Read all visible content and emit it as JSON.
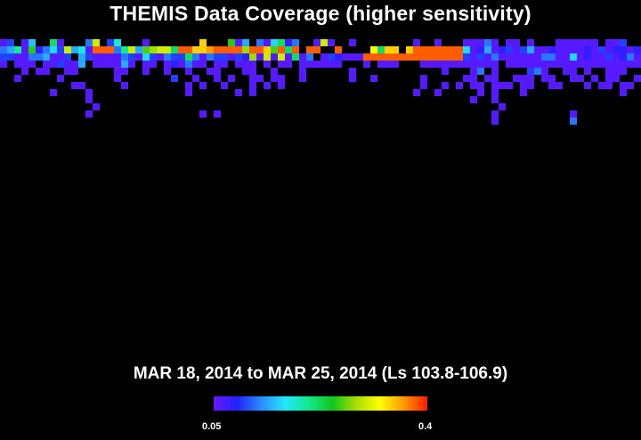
{
  "title": "THEMIS Data Coverage (higher sensitivity)",
  "date_range_label": "MAR 18, 2014 to MAR 25, 2014 (Ls 103.8-106.9)",
  "colorbar": {
    "min_label": "0.05",
    "max_label": "0.4",
    "min": 0.05,
    "max": 0.4,
    "colors": [
      "#6a16ff",
      "#2222ff",
      "#2a8cff",
      "#20e8ff",
      "#12e88c",
      "#10c81e",
      "#aadd00",
      "#ffff00",
      "#ff9a00",
      "#ff1a00"
    ]
  },
  "chart_data": {
    "type": "heatmap",
    "title": "THEMIS Data Coverage (higher sensitivity)",
    "subtitle": "MAR 18, 2014 to MAR 25, 2014 (Ls 103.8-106.9)",
    "value_range": [
      0.05,
      0.4
    ],
    "grid": false,
    "legend": "colorbar-bottom-center",
    "columns": 90,
    "rows": 27,
    "row_0_coverage": [
      0.06,
      0.1,
      0,
      0.06,
      0.15,
      0,
      0,
      0.22,
      0.06,
      0,
      0,
      0,
      0.12,
      0.3,
      0,
      0.1,
      0.18,
      0,
      0,
      0,
      0.06,
      0,
      0,
      0,
      0,
      0,
      0,
      0,
      0.34,
      0,
      0,
      0,
      0.25,
      0.06,
      0.14,
      0,
      0.12,
      0.06,
      0.16,
      0.22,
      0.08,
      0.12,
      0,
      0,
      0.06,
      0.3,
      0.06,
      0,
      0,
      0.06,
      0,
      0,
      0,
      0,
      0,
      0,
      0,
      0,
      0.06,
      0,
      0,
      0.06,
      0,
      0,
      0,
      0.06,
      0.06,
      0.06,
      0.12,
      0.06,
      0,
      0.06,
      0.06,
      0,
      0.06,
      0,
      0,
      0,
      0.06,
      0.06,
      0.06,
      0.06,
      0.06,
      0.06,
      0,
      0.06,
      0.06,
      0.1,
      0,
      0
    ],
    "row_1_coverage": [
      0.12,
      0.14,
      0.2,
      0.06,
      0.25,
      0.08,
      0.12,
      0.16,
      0.1,
      0.3,
      0.14,
      0.18,
      0.06,
      0.38,
      0.38,
      0.38,
      0.12,
      0.2,
      0.3,
      0.14,
      0.26,
      0.28,
      0.3,
      0.3,
      0.22,
      0.38,
      0.38,
      0.34,
      0.34,
      0.36,
      0.38,
      0.38,
      0.38,
      0.38,
      0.28,
      0.38,
      0.38,
      0.34,
      0.26,
      0.38,
      0.22,
      0.38,
      0,
      0.38,
      0.38,
      0,
      0,
      0.38,
      0,
      0,
      0,
      0,
      0.32,
      0.22,
      0.34,
      0.34,
      0,
      0.34,
      0.38,
      0.38,
      0.38,
      0.38,
      0.38,
      0.38,
      0.38,
      0.16,
      0.06,
      0.08,
      0.14,
      0.06,
      0.08,
      0.1,
      0.06,
      0.1,
      0.14,
      0.06,
      0.06,
      0.08,
      0.06,
      0.06,
      0.06,
      0.06,
      0.08,
      0.06,
      0.1,
      0.06,
      0.08,
      0.08,
      0.06,
      0.08
    ],
    "row_2_coverage": [
      0.1,
      0.1,
      0.06,
      0.06,
      0.12,
      0.12,
      0.14,
      0.06,
      0.06,
      0.1,
      0,
      0.14,
      0.1,
      0.06,
      0.06,
      0.06,
      0.06,
      0.12,
      0.1,
      0.06,
      0.16,
      0.1,
      0.06,
      0.12,
      0.1,
      0.1,
      0.22,
      0.12,
      0.06,
      0.12,
      0.1,
      0.1,
      0.06,
      0.1,
      0.08,
      0.28,
      0.06,
      0.3,
      0.06,
      0.3,
      0.06,
      0.22,
      0.06,
      0.12,
      0,
      0.06,
      0.1,
      0.08,
      0.06,
      0.06,
      0.06,
      0.38,
      0.38,
      0.38,
      0.38,
      0.38,
      0.38,
      0.38,
      0.38,
      0.38,
      0.38,
      0.38,
      0.38,
      0.38,
      0.38,
      0.1,
      0.06,
      0.1,
      0.06,
      0.12,
      0.06,
      0.06,
      0.06,
      0.06,
      0.06,
      0.06,
      0.12,
      0.12,
      0.06,
      0.06,
      0.16,
      0.06,
      0.08,
      0.06,
      0.06,
      0.1,
      0.06,
      0.08,
      0.12,
      0.06
    ],
    "row_3_coverage": [
      0.06,
      0,
      0.06,
      0.06,
      0.06,
      0,
      0.06,
      0.06,
      0.1,
      0.06,
      0.06,
      0.14,
      0,
      0.06,
      0.06,
      0.06,
      0.06,
      0.14,
      0.06,
      0,
      0.06,
      0.06,
      0,
      0.06,
      0.08,
      0.06,
      0.12,
      0.06,
      0.06,
      0,
      0.06,
      0.06,
      0,
      0.06,
      0.06,
      0.06,
      0,
      0.06,
      0,
      0.06,
      0.06,
      0,
      0.06,
      0.06,
      0.06,
      0.06,
      0.06,
      0.06,
      0,
      0,
      0,
      0.06,
      0,
      0.06,
      0.06,
      0.06,
      0,
      0,
      0,
      0.06,
      0.06,
      0.06,
      0.06,
      0.06,
      0.06,
      0.06,
      0.06,
      0.06,
      0.06,
      0.06,
      0,
      0.06,
      0.06,
      0.06,
      0.06,
      0.06,
      0.06,
      0.06,
      0.06,
      0.06,
      0.06,
      0.06,
      0.06,
      0.06,
      0.06,
      0.06,
      0.06,
      0.06,
      0.06,
      0.06
    ],
    "row_4_coverage": [
      0,
      0,
      0,
      0.06,
      0,
      0.06,
      0.06,
      0,
      0,
      0.06,
      0.06,
      0,
      0,
      0,
      0,
      0,
      0.06,
      0.06,
      0,
      0,
      0.06,
      0,
      0,
      0.06,
      0,
      0,
      0.06,
      0,
      0,
      0.06,
      0.06,
      0,
      0,
      0,
      0.06,
      0.06,
      0,
      0,
      0.06,
      0,
      0,
      0,
      0.06,
      0,
      0,
      0,
      0,
      0,
      0,
      0.06,
      0,
      0,
      0,
      0,
      0,
      0,
      0,
      0,
      0,
      0,
      0,
      0,
      0.06,
      0,
      0,
      0,
      0.06,
      0.12,
      0,
      0.06,
      0,
      0,
      0,
      0,
      0.1,
      0.12,
      0.06,
      0,
      0,
      0.06,
      0.06,
      0,
      0.06,
      0,
      0,
      0.06,
      0.06,
      0.06,
      0,
      0
    ],
    "row_5_coverage": [
      0,
      0,
      0.06,
      0,
      0,
      0,
      0,
      0,
      0.06,
      0,
      0,
      0,
      0,
      0,
      0,
      0,
      0.06,
      0,
      0,
      0,
      0,
      0,
      0,
      0,
      0.1,
      0,
      0,
      0.06,
      0,
      0,
      0.06,
      0,
      0.06,
      0,
      0,
      0.06,
      0.06,
      0,
      0.06,
      0.06,
      0,
      0,
      0.06,
      0,
      0,
      0,
      0,
      0,
      0,
      0.06,
      0,
      0,
      0.06,
      0,
      0,
      0,
      0,
      0,
      0,
      0.06,
      0,
      0,
      0,
      0,
      0,
      0.06,
      0.06,
      0,
      0.06,
      0.06,
      0,
      0,
      0.06,
      0.06,
      0.06,
      0,
      0.06,
      0.06,
      0,
      0,
      0.06,
      0.06,
      0,
      0.06,
      0,
      0.06,
      0.06,
      0,
      0,
      0.06
    ],
    "row_6_coverage": [
      0,
      0,
      0,
      0,
      0,
      0,
      0,
      0,
      0,
      0,
      0.06,
      0.06,
      0,
      0,
      0,
      0,
      0,
      0.06,
      0,
      0,
      0,
      0,
      0,
      0,
      0,
      0,
      0.06,
      0,
      0.06,
      0,
      0,
      0.06,
      0,
      0,
      0,
      0.06,
      0,
      0.06,
      0,
      0.06,
      0,
      0,
      0,
      0,
      0,
      0,
      0,
      0,
      0,
      0,
      0,
      0,
      0,
      0,
      0,
      0,
      0,
      0,
      0,
      0.06,
      0,
      0,
      0.06,
      0,
      0.06,
      0,
      0.06,
      0.06,
      0,
      0.06,
      0.06,
      0.06,
      0,
      0.06,
      0.06,
      0,
      0,
      0.06,
      0.06,
      0,
      0,
      0,
      0.06,
      0,
      0.06,
      0.06,
      0,
      0.06,
      0.06,
      0
    ],
    "row_7_coverage": [
      0,
      0,
      0,
      0,
      0,
      0,
      0,
      0.06,
      0,
      0,
      0,
      0,
      0.06,
      0,
      0,
      0,
      0,
      0,
      0,
      0,
      0,
      0,
      0,
      0,
      0,
      0,
      0.06,
      0,
      0,
      0,
      0,
      0,
      0,
      0.06,
      0,
      0.06,
      0,
      0,
      0,
      0,
      0,
      0,
      0,
      0,
      0,
      0,
      0,
      0,
      0,
      0,
      0,
      0,
      0,
      0,
      0,
      0,
      0,
      0,
      0.06,
      0,
      0,
      0.06,
      0,
      0,
      0,
      0,
      0,
      0.06,
      0,
      0.06,
      0,
      0,
      0,
      0.06,
      0,
      0,
      0,
      0,
      0,
      0,
      0,
      0,
      0,
      0,
      0,
      0,
      0,
      0.06,
      0,
      0
    ],
    "row_8_coverage": [
      0,
      0,
      0,
      0,
      0,
      0,
      0,
      0,
      0,
      0,
      0,
      0,
      0.06,
      0,
      0,
      0,
      0,
      0,
      0,
      0,
      0,
      0,
      0,
      0,
      0,
      0,
      0,
      0,
      0,
      0,
      0,
      0,
      0,
      0,
      0,
      0,
      0,
      0,
      0,
      0,
      0,
      0,
      0,
      0,
      0,
      0,
      0,
      0,
      0,
      0,
      0,
      0,
      0,
      0,
      0,
      0,
      0,
      0,
      0,
      0,
      0,
      0,
      0,
      0,
      0,
      0,
      0.06,
      0,
      0,
      0.06,
      0,
      0,
      0,
      0,
      0,
      0,
      0,
      0,
      0,
      0,
      0,
      0,
      0,
      0,
      0,
      0,
      0,
      0,
      0,
      0
    ],
    "row_9_coverage": [
      0,
      0,
      0,
      0,
      0,
      0,
      0,
      0,
      0,
      0,
      0,
      0,
      0,
      0.06,
      0,
      0,
      0,
      0,
      0,
      0,
      0,
      0,
      0,
      0,
      0,
      0,
      0,
      0,
      0,
      0,
      0,
      0,
      0,
      0,
      0,
      0,
      0,
      0,
      0,
      0,
      0,
      0,
      0,
      0,
      0,
      0,
      0,
      0,
      0,
      0,
      0,
      0,
      0,
      0,
      0,
      0,
      0,
      0,
      0,
      0,
      0,
      0,
      0,
      0,
      0,
      0,
      0,
      0,
      0,
      0,
      0.06,
      0,
      0,
      0,
      0,
      0,
      0,
      0,
      0,
      0,
      0,
      0,
      0,
      0,
      0,
      0,
      0,
      0,
      0,
      0
    ],
    "row_10_coverage": [
      0,
      0,
      0,
      0,
      0,
      0,
      0,
      0,
      0,
      0,
      0,
      0,
      0.06,
      0,
      0,
      0,
      0,
      0,
      0,
      0,
      0,
      0,
      0,
      0,
      0,
      0,
      0,
      0,
      0.06,
      0,
      0.06,
      0,
      0,
      0,
      0,
      0,
      0,
      0,
      0,
      0,
      0,
      0,
      0,
      0,
      0,
      0,
      0,
      0,
      0,
      0,
      0,
      0,
      0,
      0,
      0,
      0,
      0,
      0,
      0,
      0,
      0,
      0,
      0,
      0,
      0,
      0,
      0,
      0,
      0,
      0.06,
      0,
      0,
      0,
      0,
      0,
      0,
      0,
      0,
      0,
      0,
      0.06,
      0,
      0,
      0,
      0,
      0,
      0,
      0,
      0,
      0
    ],
    "row_11_coverage": [
      0,
      0,
      0,
      0,
      0,
      0,
      0,
      0,
      0,
      0,
      0,
      0,
      0,
      0,
      0,
      0,
      0,
      0,
      0,
      0,
      0,
      0,
      0,
      0,
      0,
      0,
      0,
      0,
      0,
      0,
      0,
      0,
      0,
      0,
      0,
      0,
      0,
      0,
      0,
      0,
      0,
      0,
      0,
      0,
      0,
      0,
      0,
      0,
      0,
      0,
      0,
      0,
      0,
      0,
      0,
      0,
      0,
      0,
      0,
      0,
      0,
      0,
      0,
      0,
      0,
      0,
      0,
      0,
      0,
      0.06,
      0,
      0,
      0,
      0,
      0,
      0,
      0,
      0,
      0,
      0,
      0.12,
      0,
      0,
      0,
      0,
      0,
      0,
      0,
      0,
      0
    ]
  }
}
